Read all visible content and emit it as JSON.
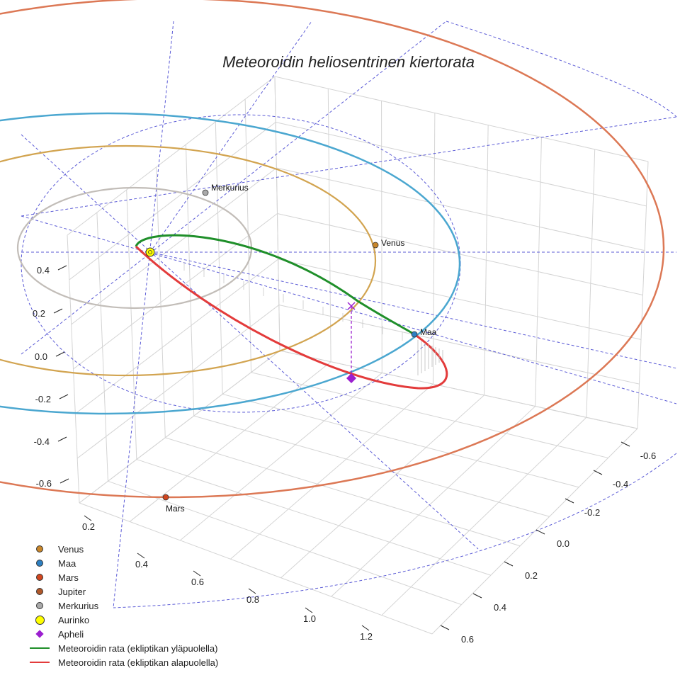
{
  "chart_data": {
    "type": "3d-line",
    "title": "Meteoroidin heliosentrinen kiertorata",
    "axes": {
      "x_ticks": [
        "0.2",
        "0.4",
        "0.6",
        "0.8",
        "1.0",
        "1.2"
      ],
      "y_ticks": [
        "-0.6",
        "-0.4",
        "-0.2",
        "0.0",
        "0.2",
        "0.4",
        "0.6"
      ],
      "z_ticks": [
        "-0.6",
        "-0.4",
        "-0.2",
        "0.0",
        "0.2",
        "0.4"
      ]
    },
    "planets": [
      {
        "name": "Venus",
        "label": "Venus",
        "color": "#c8862a"
      },
      {
        "name": "Maa",
        "label": "Maa",
        "color": "#2d7fc1"
      },
      {
        "name": "Mars",
        "label": "Mars",
        "color": "#d1461f"
      },
      {
        "name": "Jupiter",
        "label": "",
        "color": "#b0582a"
      },
      {
        "name": "Merkurius",
        "label": "Merkurius",
        "color": "#aaaaaa"
      }
    ],
    "orbit_colors": {
      "merkurius": "#c2bdb8",
      "venus": "#d2a450",
      "maa": "#4ba7d0",
      "mars": "#dc7855",
      "above": "#1f8f2a",
      "below": "#e33b3b"
    },
    "legend": [
      {
        "label": "Venus",
        "symbol": "dot",
        "color": "#c8862a"
      },
      {
        "label": "Maa",
        "symbol": "dot",
        "color": "#2d7fc1"
      },
      {
        "label": "Mars",
        "symbol": "dot",
        "color": "#d1461f"
      },
      {
        "label": "Jupiter",
        "symbol": "dot",
        "color": "#b0582a"
      },
      {
        "label": "Merkurius",
        "symbol": "dot",
        "color": "#aaaaaa"
      },
      {
        "label": "Aurinko",
        "symbol": "big-dot",
        "color": "#ffff00"
      },
      {
        "label": "Apheli",
        "symbol": "diamond",
        "color": "#9b1fcf"
      },
      {
        "label": "Meteoroidin rata (ekliptikan yläpuolella)",
        "symbol": "line",
        "color": "#1f8f2a"
      },
      {
        "label": "Meteoroidin rata (ekliptikan alapuolella)",
        "symbol": "line",
        "color": "#e33b3b"
      }
    ]
  }
}
